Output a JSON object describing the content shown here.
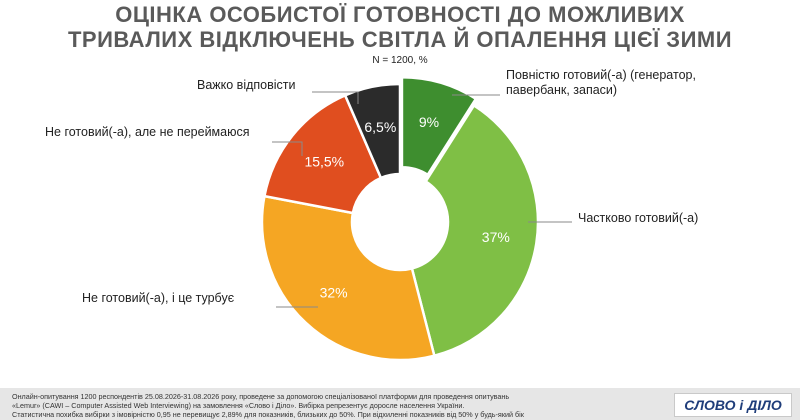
{
  "title": {
    "line1": "ОЦІНКА ОСОБИСТОЇ ГОТОВНОСТІ ДО МОЖЛИВИХ",
    "line2": "ТРИВАЛИХ ВІДКЛЮЧЕНЬ СВІТЛА Й ОПАЛЕННЯ ЦІЄЇ ЗИМИ"
  },
  "subtitle": "N = 1200, %",
  "chart_data": {
    "type": "pie",
    "donut": true,
    "unit": "%",
    "slices": [
      {
        "label": "Повністю готовий(-а) (генератор, павербанк, запаси)",
        "label_lines": [
          "Повністю готовий(-а) (генератор,",
          "павербанк, запаси)"
        ],
        "value": 9,
        "value_label": "9%",
        "color": "#3e8e2f"
      },
      {
        "label": "Частково готовий(-а)",
        "label_lines": [
          "Частково готовий(-а)"
        ],
        "value": 37,
        "value_label": "37%",
        "color": "#7fbf45"
      },
      {
        "label": "Не готовий(-а), і це турбує",
        "label_lines": [
          "Не готовий(-а), і це турбує"
        ],
        "value": 32,
        "value_label": "32%",
        "color": "#f5a623"
      },
      {
        "label": "Не готовий(-а), але не переймаюся",
        "label_lines": [
          "Не готовий(-а), але не переймаюся"
        ],
        "value": 15.5,
        "value_label": "15,5%",
        "color": "#e04e1f"
      },
      {
        "label": "Важко відповісти",
        "label_lines": [
          "Важко відповісти"
        ],
        "value": 6.5,
        "value_label": "6,5%",
        "color": "#2b2b2b"
      }
    ]
  },
  "footer": {
    "lines": [
      "Онлайн-опитування 1200 респондентів 25.08.2026-31.08.2026 року, проведене за допомогою спеціалізованої платформи для проведення опитувань",
      "«Lemur» (CAWI – Computer Assisted Web Interviewing) на замовлення «Слово і Діло». Вибірка репрезентує доросле населення України.",
      "Статистична похибка вибірки з імовірністю 0,95 не перевищує 2,89% для показників, близьких до 50%. При відхиленні показників від 50% у будь-який бік"
    ],
    "logo": "СЛОВО і ДІЛО"
  }
}
